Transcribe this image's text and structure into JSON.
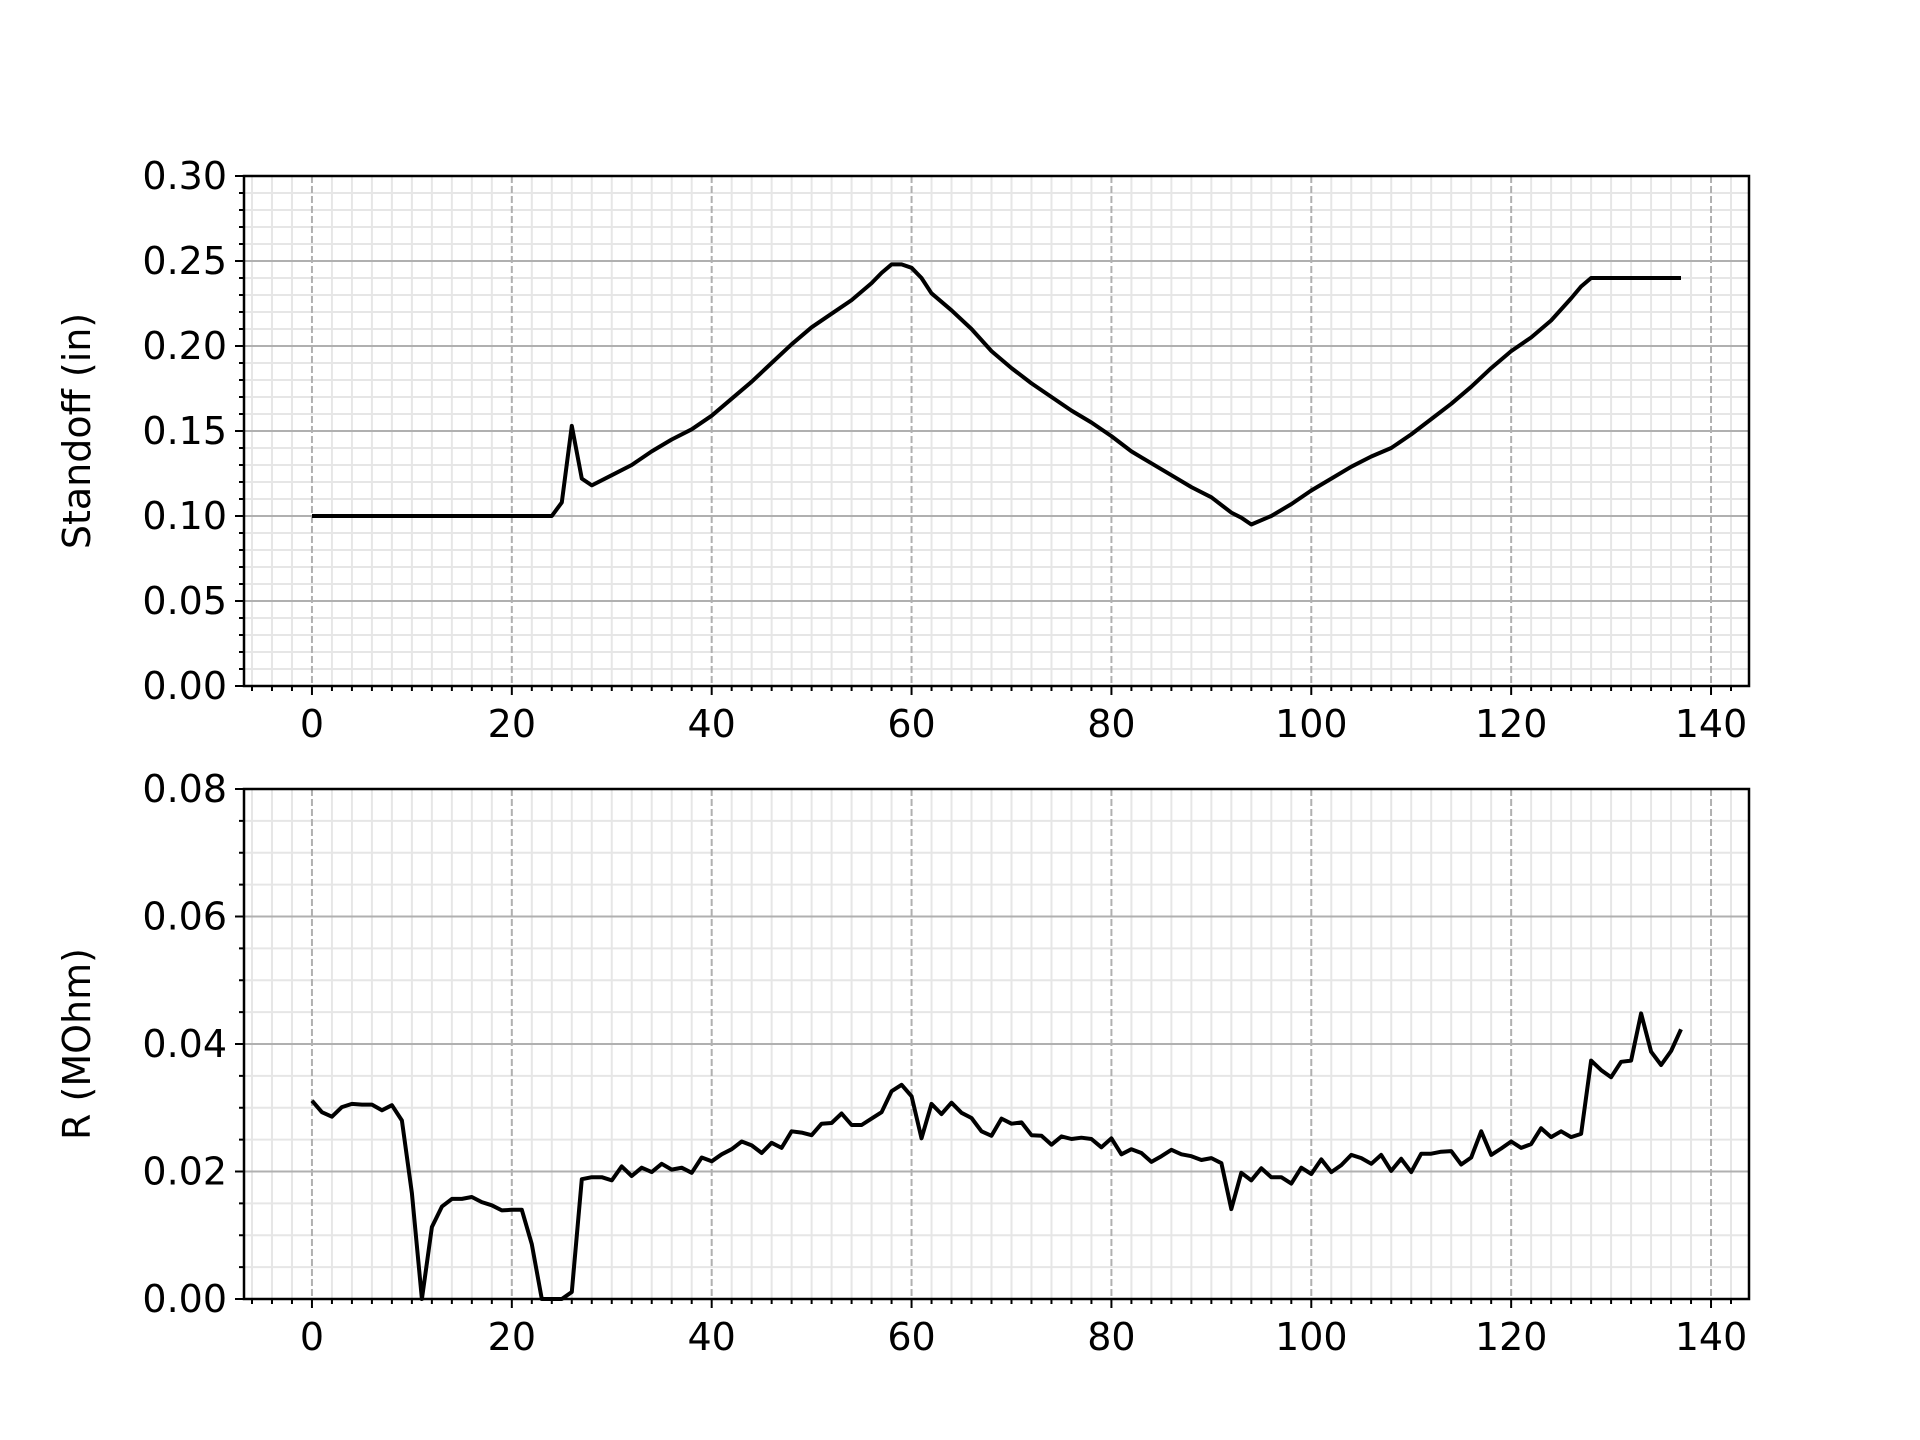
{
  "chart_data": [
    {
      "type": "line",
      "ylabel": "Standoff (in)",
      "xlim": [
        -6.8,
        143.8
      ],
      "ylim": [
        0.0,
        0.3
      ],
      "xticks": [
        0,
        20,
        40,
        60,
        80,
        100,
        120,
        140
      ],
      "xtick_labels": [
        "0",
        "20",
        "40",
        "60",
        "80",
        "100",
        "120",
        "140"
      ],
      "yticks": [
        0.0,
        0.05,
        0.1,
        0.15,
        0.2,
        0.25,
        0.3
      ],
      "ytick_labels": [
        "0.00",
        "0.05",
        "0.10",
        "0.15",
        "0.20",
        "0.25",
        "0.30"
      ],
      "x_minor_step": 2,
      "y_minor_step": 0.01,
      "grid": true,
      "line_color": "#000000",
      "x": [
        0,
        24,
        25,
        26,
        27,
        28,
        30,
        32,
        34,
        36,
        38,
        40,
        42,
        44,
        46,
        48,
        50,
        52,
        54,
        56,
        57,
        58,
        59,
        60,
        61,
        62,
        64,
        66,
        68,
        70,
        72,
        74,
        76,
        78,
        80,
        82,
        84,
        86,
        88,
        90,
        92,
        93,
        94,
        96,
        98,
        100,
        102,
        104,
        106,
        108,
        110,
        112,
        114,
        116,
        118,
        120,
        122,
        124,
        126,
        127,
        128,
        137
      ],
      "y": [
        0.1,
        0.1,
        0.108,
        0.153,
        0.122,
        0.118,
        0.124,
        0.13,
        0.138,
        0.145,
        0.151,
        0.159,
        0.169,
        0.179,
        0.19,
        0.201,
        0.211,
        0.219,
        0.227,
        0.237,
        0.243,
        0.248,
        0.248,
        0.246,
        0.24,
        0.231,
        0.221,
        0.21,
        0.197,
        0.187,
        0.178,
        0.17,
        0.162,
        0.155,
        0.147,
        0.138,
        0.131,
        0.124,
        0.117,
        0.111,
        0.102,
        0.099,
        0.095,
        0.1,
        0.107,
        0.115,
        0.122,
        0.129,
        0.135,
        0.14,
        0.148,
        0.157,
        0.166,
        0.176,
        0.187,
        0.197,
        0.205,
        0.215,
        0.228,
        0.235,
        0.24,
        0.24
      ]
    },
    {
      "type": "line",
      "ylabel": "R (MOhm)",
      "xlim": [
        -6.8,
        143.8
      ],
      "ylim": [
        0.0,
        0.08
      ],
      "xticks": [
        0,
        20,
        40,
        60,
        80,
        100,
        120,
        140
      ],
      "xtick_labels": [
        "0",
        "20",
        "40",
        "60",
        "80",
        "100",
        "120",
        "140"
      ],
      "yticks": [
        0.0,
        0.02,
        0.04,
        0.06,
        0.08
      ],
      "ytick_labels": [
        "0.00",
        "0.02",
        "0.04",
        "0.06",
        "0.08"
      ],
      "x_minor_step": 2,
      "y_minor_step": 0.005,
      "grid": true,
      "line_color": "#000000",
      "x": [
        0,
        1,
        2,
        3,
        4,
        5,
        6,
        7,
        8,
        9,
        10,
        11,
        12,
        13,
        14,
        15,
        16,
        17,
        18,
        19,
        20,
        21,
        22,
        23,
        24,
        25,
        26,
        27,
        28,
        29,
        30,
        31,
        32,
        33,
        34,
        35,
        36,
        37,
        38,
        39,
        40,
        41,
        42,
        43,
        44,
        45,
        46,
        47,
        48,
        49,
        50,
        51,
        52,
        53,
        54,
        55,
        56,
        57,
        58,
        59,
        60,
        61,
        62,
        63,
        64,
        65,
        66,
        67,
        68,
        69,
        70,
        71,
        72,
        73,
        74,
        75,
        76,
        77,
        78,
        79,
        80,
        81,
        82,
        83,
        84,
        85,
        86,
        87,
        88,
        89,
        90,
        91,
        92,
        93,
        94,
        95,
        96,
        97,
        98,
        99,
        100,
        101,
        102,
        103,
        104,
        105,
        106,
        107,
        108,
        109,
        110,
        111,
        112,
        113,
        114,
        115,
        116,
        117,
        118,
        119,
        120,
        121,
        122,
        123,
        124,
        125,
        126,
        127,
        128,
        129,
        130,
        131,
        132,
        133,
        134,
        135,
        136,
        137
      ],
      "y": [
        0.0311,
        0.0293,
        0.0286,
        0.0301,
        0.0306,
        0.0305,
        0.0305,
        0.0296,
        0.0304,
        0.028,
        0.0166,
        0.0,
        0.0113,
        0.0145,
        0.0157,
        0.0157,
        0.016,
        0.0152,
        0.0147,
        0.0139,
        0.014,
        0.014,
        0.0086,
        0.0,
        0.0,
        0.0,
        0.0011,
        0.0188,
        0.0191,
        0.0191,
        0.0186,
        0.0208,
        0.0193,
        0.0206,
        0.0199,
        0.0212,
        0.0203,
        0.0206,
        0.0198,
        0.0222,
        0.0216,
        0.0227,
        0.0235,
        0.0247,
        0.0241,
        0.0229,
        0.0245,
        0.0237,
        0.0263,
        0.0261,
        0.0257,
        0.0275,
        0.0276,
        0.0291,
        0.0273,
        0.0273,
        0.0283,
        0.0293,
        0.0326,
        0.0336,
        0.0318,
        0.0252,
        0.0306,
        0.029,
        0.0308,
        0.0292,
        0.0284,
        0.0263,
        0.0256,
        0.0283,
        0.0275,
        0.0277,
        0.0257,
        0.0256,
        0.0242,
        0.0255,
        0.0251,
        0.0253,
        0.0251,
        0.0238,
        0.0252,
        0.0227,
        0.0235,
        0.0229,
        0.0215,
        0.0224,
        0.0234,
        0.0227,
        0.0224,
        0.0218,
        0.0221,
        0.0213,
        0.0141,
        0.0198,
        0.0186,
        0.0205,
        0.0191,
        0.0191,
        0.0181,
        0.0206,
        0.0196,
        0.0219,
        0.0199,
        0.021,
        0.0226,
        0.0221,
        0.0212,
        0.0226,
        0.0201,
        0.022,
        0.0199,
        0.0228,
        0.0228,
        0.0231,
        0.0232,
        0.0211,
        0.0222,
        0.0263,
        0.0226,
        0.0236,
        0.0247,
        0.0237,
        0.0243,
        0.0268,
        0.0254,
        0.0263,
        0.0254,
        0.0259,
        0.0374,
        0.0359,
        0.0348,
        0.0372,
        0.0374,
        0.0448,
        0.0388,
        0.0367,
        0.0389,
        0.0423
      ]
    }
  ]
}
